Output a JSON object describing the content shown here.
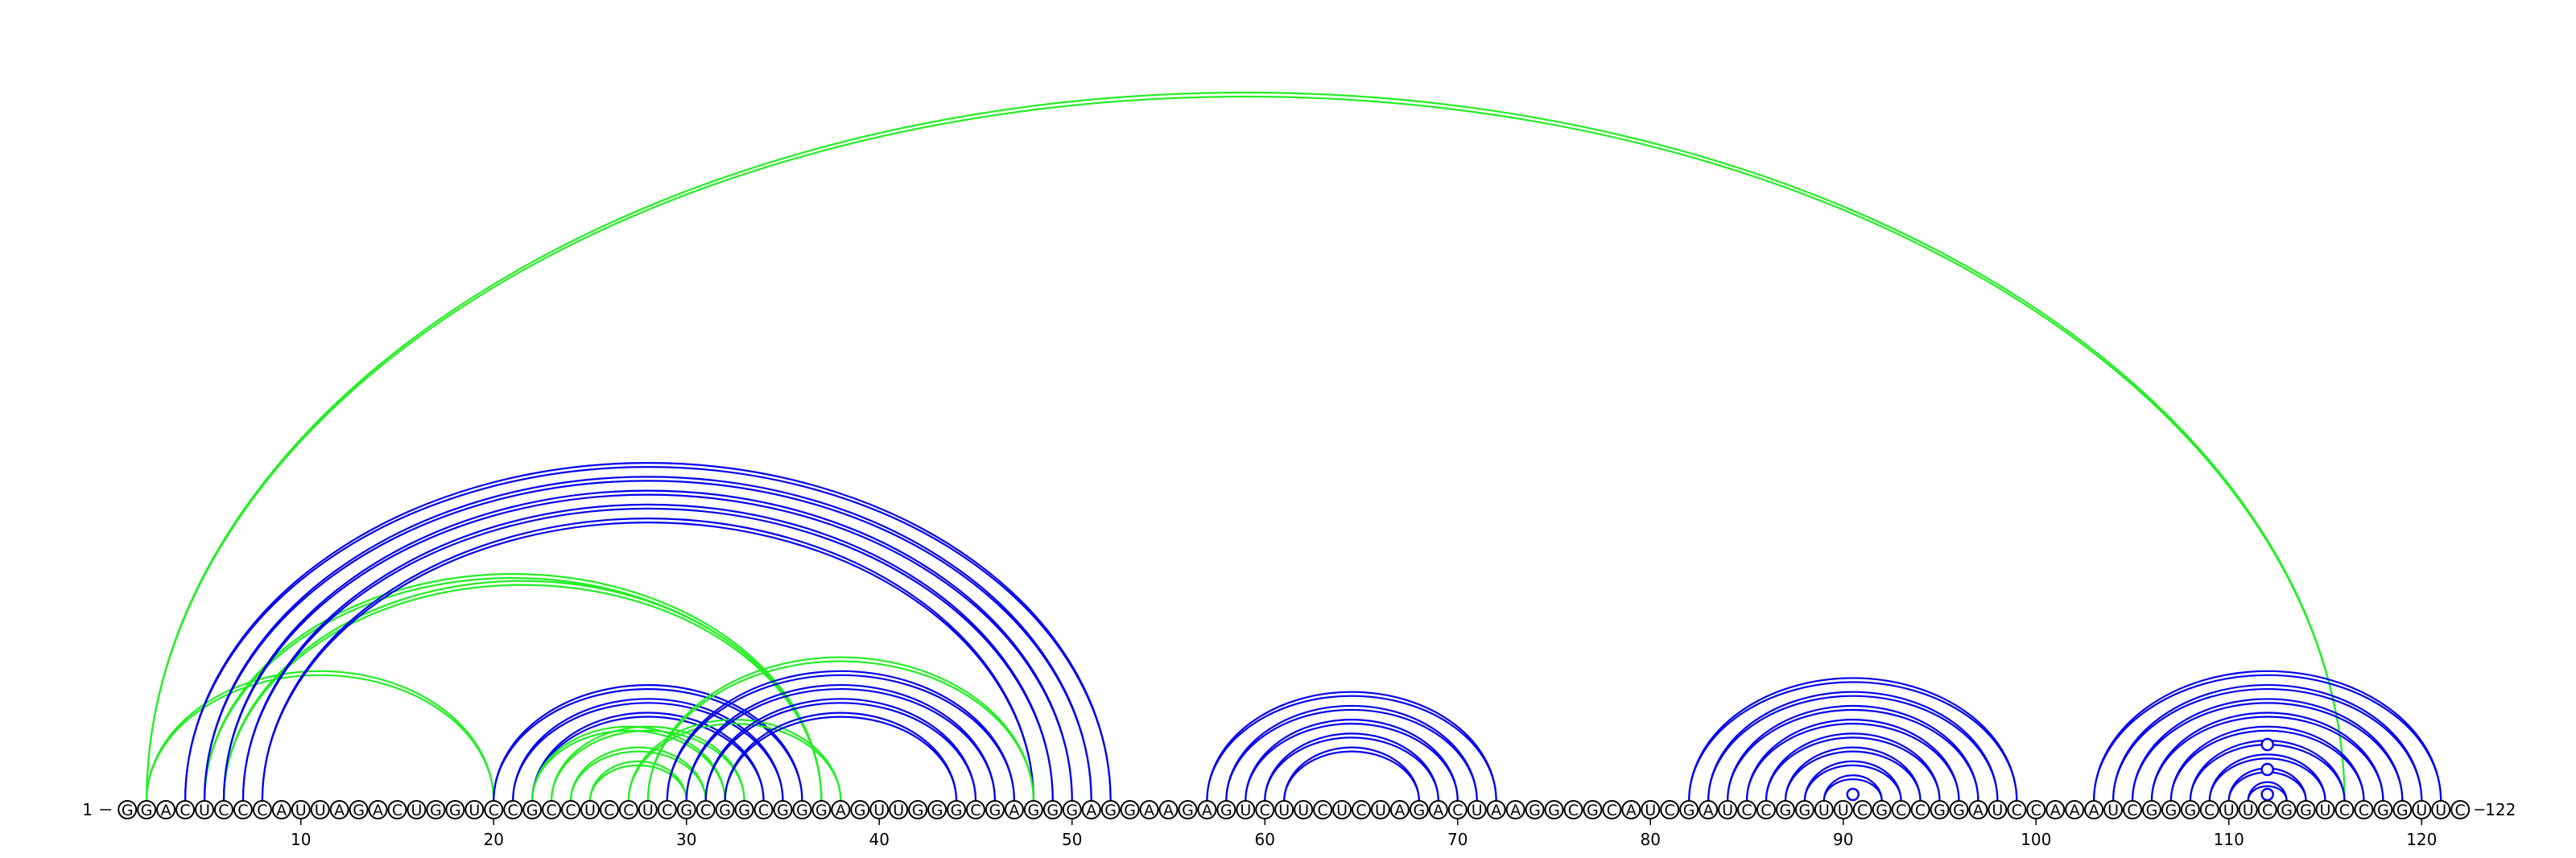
{
  "sequence": "GGACUCCCAUUAGACUGGUCCGCCUCCUCGCGGCGGGAGUUGGGCGAGGGAGGAAGAGUCUUCUCUAGACUAAGGCGCAUCGAUCCGGUUCGCCGGAUCCAAAUCGGGCUUCGGUCCGGUUC",
  "start_label": "1",
  "end_label": "122",
  "ticks": [
    10,
    20,
    30,
    40,
    50,
    60,
    70,
    80,
    90,
    100,
    110,
    120
  ],
  "colors": {
    "blue": "#0000ee",
    "green": "#22ee22",
    "text": "#000000"
  },
  "arcs": [
    {
      "i": 2,
      "j": 116,
      "color": "green"
    },
    {
      "i": 2,
      "j": 20,
      "color": "green"
    },
    {
      "i": 5,
      "j": 37,
      "color": "green"
    },
    {
      "i": 6,
      "j": 37,
      "color": "green"
    },
    {
      "i": 4,
      "j": 52,
      "color": "blue"
    },
    {
      "i": 5,
      "j": 51,
      "color": "blue"
    },
    {
      "i": 6,
      "j": 50,
      "color": "blue"
    },
    {
      "i": 7,
      "j": 49,
      "color": "blue"
    },
    {
      "i": 8,
      "j": 48,
      "color": "blue"
    },
    {
      "i": 20,
      "j": 36,
      "color": "blue"
    },
    {
      "i": 21,
      "j": 35,
      "color": "blue"
    },
    {
      "i": 22,
      "j": 34,
      "color": "blue"
    },
    {
      "i": 22,
      "j": 32,
      "color": "green"
    },
    {
      "i": 23,
      "j": 33,
      "color": "green"
    },
    {
      "i": 24,
      "j": 31,
      "color": "green"
    },
    {
      "i": 25,
      "j": 30,
      "color": "green"
    },
    {
      "i": 27,
      "j": 38,
      "color": "green"
    },
    {
      "i": 28,
      "j": 48,
      "color": "green"
    },
    {
      "i": 29,
      "j": 47,
      "color": "blue"
    },
    {
      "i": 30,
      "j": 46,
      "color": "blue"
    },
    {
      "i": 31,
      "j": 45,
      "color": "blue"
    },
    {
      "i": 32,
      "j": 44,
      "color": "blue"
    },
    {
      "i": 57,
      "j": 72,
      "color": "blue"
    },
    {
      "i": 58,
      "j": 71,
      "color": "blue"
    },
    {
      "i": 59,
      "j": 70,
      "color": "blue"
    },
    {
      "i": 60,
      "j": 69,
      "color": "blue"
    },
    {
      "i": 61,
      "j": 68,
      "color": "blue"
    },
    {
      "i": 82,
      "j": 99,
      "color": "blue"
    },
    {
      "i": 83,
      "j": 98,
      "color": "blue"
    },
    {
      "i": 84,
      "j": 97,
      "color": "blue"
    },
    {
      "i": 85,
      "j": 96,
      "color": "blue"
    },
    {
      "i": 86,
      "j": 95,
      "color": "blue"
    },
    {
      "i": 87,
      "j": 94,
      "color": "blue"
    },
    {
      "i": 88,
      "j": 93,
      "color": "blue"
    },
    {
      "i": 89,
      "j": 92,
      "color": "blue"
    },
    {
      "i": 103,
      "j": 121,
      "color": "blue"
    },
    {
      "i": 104,
      "j": 120,
      "color": "blue"
    },
    {
      "i": 105,
      "j": 119,
      "color": "blue"
    },
    {
      "i": 106,
      "j": 118,
      "color": "blue"
    },
    {
      "i": 107,
      "j": 117,
      "color": "blue"
    },
    {
      "i": 108,
      "j": 116,
      "color": "blue"
    },
    {
      "i": 109,
      "j": 115,
      "color": "blue"
    },
    {
      "i": 110,
      "j": 114,
      "color": "blue"
    },
    {
      "i": 111,
      "j": 113,
      "color": "blue"
    }
  ],
  "markers": [
    {
      "pos": 90.5,
      "level": 1,
      "color": "blue"
    },
    {
      "pos": 112,
      "level": 1,
      "color": "blue"
    },
    {
      "pos": 112,
      "level": 2,
      "color": "blue"
    },
    {
      "pos": 112,
      "level": 3,
      "color": "blue"
    }
  ]
}
